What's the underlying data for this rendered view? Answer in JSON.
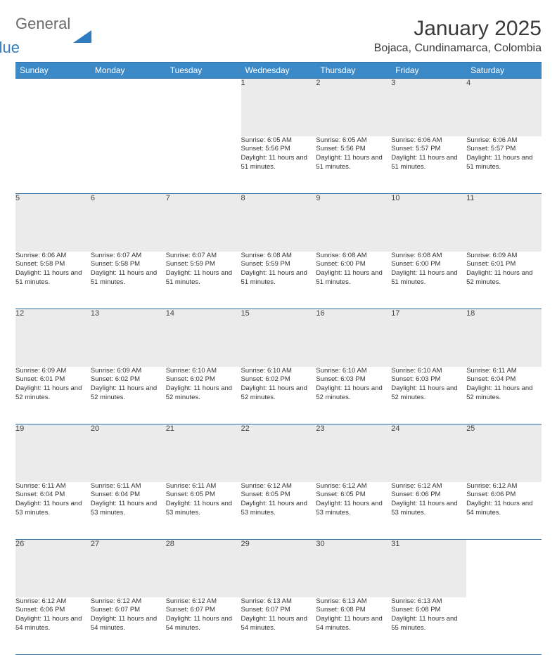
{
  "brand": {
    "text_general": "General",
    "text_blue": "Blue",
    "triangle_color": "#2f7dc0",
    "gray_color": "#6b6b6b"
  },
  "header": {
    "month_title": "January 2025",
    "location": "Bojaca, Cundinamarca, Colombia"
  },
  "colors": {
    "header_bg": "#3b89c7",
    "header_border": "#2f6fa3",
    "daynum_bg": "#ebebeb",
    "page_bg": "#ffffff"
  },
  "day_names": [
    "Sunday",
    "Monday",
    "Tuesday",
    "Wednesday",
    "Thursday",
    "Friday",
    "Saturday"
  ],
  "weeks": [
    [
      null,
      null,
      null,
      {
        "n": "1",
        "sr": "6:05 AM",
        "ss": "5:56 PM",
        "dl": "11 hours and 51 minutes."
      },
      {
        "n": "2",
        "sr": "6:05 AM",
        "ss": "5:56 PM",
        "dl": "11 hours and 51 minutes."
      },
      {
        "n": "3",
        "sr": "6:06 AM",
        "ss": "5:57 PM",
        "dl": "11 hours and 51 minutes."
      },
      {
        "n": "4",
        "sr": "6:06 AM",
        "ss": "5:57 PM",
        "dl": "11 hours and 51 minutes."
      }
    ],
    [
      {
        "n": "5",
        "sr": "6:06 AM",
        "ss": "5:58 PM",
        "dl": "11 hours and 51 minutes."
      },
      {
        "n": "6",
        "sr": "6:07 AM",
        "ss": "5:58 PM",
        "dl": "11 hours and 51 minutes."
      },
      {
        "n": "7",
        "sr": "6:07 AM",
        "ss": "5:59 PM",
        "dl": "11 hours and 51 minutes."
      },
      {
        "n": "8",
        "sr": "6:08 AM",
        "ss": "5:59 PM",
        "dl": "11 hours and 51 minutes."
      },
      {
        "n": "9",
        "sr": "6:08 AM",
        "ss": "6:00 PM",
        "dl": "11 hours and 51 minutes."
      },
      {
        "n": "10",
        "sr": "6:08 AM",
        "ss": "6:00 PM",
        "dl": "11 hours and 51 minutes."
      },
      {
        "n": "11",
        "sr": "6:09 AM",
        "ss": "6:01 PM",
        "dl": "11 hours and 52 minutes."
      }
    ],
    [
      {
        "n": "12",
        "sr": "6:09 AM",
        "ss": "6:01 PM",
        "dl": "11 hours and 52 minutes."
      },
      {
        "n": "13",
        "sr": "6:09 AM",
        "ss": "6:02 PM",
        "dl": "11 hours and 52 minutes."
      },
      {
        "n": "14",
        "sr": "6:10 AM",
        "ss": "6:02 PM",
        "dl": "11 hours and 52 minutes."
      },
      {
        "n": "15",
        "sr": "6:10 AM",
        "ss": "6:02 PM",
        "dl": "11 hours and 52 minutes."
      },
      {
        "n": "16",
        "sr": "6:10 AM",
        "ss": "6:03 PM",
        "dl": "11 hours and 52 minutes."
      },
      {
        "n": "17",
        "sr": "6:10 AM",
        "ss": "6:03 PM",
        "dl": "11 hours and 52 minutes."
      },
      {
        "n": "18",
        "sr": "6:11 AM",
        "ss": "6:04 PM",
        "dl": "11 hours and 52 minutes."
      }
    ],
    [
      {
        "n": "19",
        "sr": "6:11 AM",
        "ss": "6:04 PM",
        "dl": "11 hours and 53 minutes."
      },
      {
        "n": "20",
        "sr": "6:11 AM",
        "ss": "6:04 PM",
        "dl": "11 hours and 53 minutes."
      },
      {
        "n": "21",
        "sr": "6:11 AM",
        "ss": "6:05 PM",
        "dl": "11 hours and 53 minutes."
      },
      {
        "n": "22",
        "sr": "6:12 AM",
        "ss": "6:05 PM",
        "dl": "11 hours and 53 minutes."
      },
      {
        "n": "23",
        "sr": "6:12 AM",
        "ss": "6:05 PM",
        "dl": "11 hours and 53 minutes."
      },
      {
        "n": "24",
        "sr": "6:12 AM",
        "ss": "6:06 PM",
        "dl": "11 hours and 53 minutes."
      },
      {
        "n": "25",
        "sr": "6:12 AM",
        "ss": "6:06 PM",
        "dl": "11 hours and 54 minutes."
      }
    ],
    [
      {
        "n": "26",
        "sr": "6:12 AM",
        "ss": "6:06 PM",
        "dl": "11 hours and 54 minutes."
      },
      {
        "n": "27",
        "sr": "6:12 AM",
        "ss": "6:07 PM",
        "dl": "11 hours and 54 minutes."
      },
      {
        "n": "28",
        "sr": "6:12 AM",
        "ss": "6:07 PM",
        "dl": "11 hours and 54 minutes."
      },
      {
        "n": "29",
        "sr": "6:13 AM",
        "ss": "6:07 PM",
        "dl": "11 hours and 54 minutes."
      },
      {
        "n": "30",
        "sr": "6:13 AM",
        "ss": "6:08 PM",
        "dl": "11 hours and 54 minutes."
      },
      {
        "n": "31",
        "sr": "6:13 AM",
        "ss": "6:08 PM",
        "dl": "11 hours and 55 minutes."
      },
      null
    ]
  ],
  "labels": {
    "sunrise": "Sunrise:",
    "sunset": "Sunset:",
    "daylight": "Daylight:"
  }
}
